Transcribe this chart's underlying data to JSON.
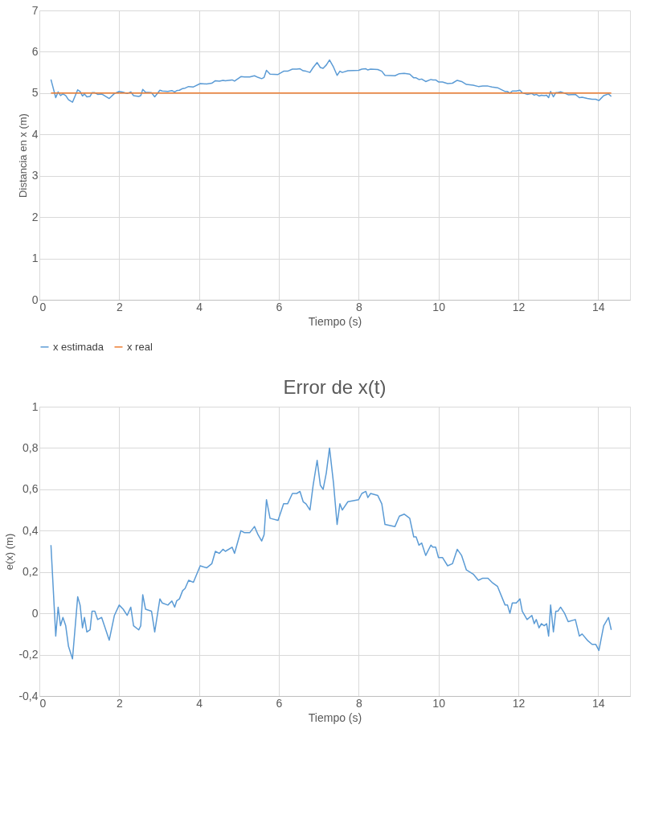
{
  "chart_data": [
    {
      "type": "line",
      "xlabel": "Tiempo (s)",
      "ylabel": "Distancia en x (m)",
      "xlim": [
        0,
        14.8
      ],
      "xticks": [
        0,
        2,
        4,
        6,
        8,
        10,
        12,
        14
      ],
      "ylim": [
        0,
        7
      ],
      "yticks": [
        0,
        1,
        2,
        3,
        4,
        5,
        6,
        7
      ],
      "grid": true,
      "legend": "bottom left",
      "marker": "none",
      "line_style": "solid",
      "series": [
        {
          "name": "x estimada",
          "color": "#5b9bd5",
          "x": [
            0.29,
            0.41,
            0.47,
            0.53,
            0.59,
            0.66,
            0.73,
            0.83,
            0.96,
            1.02,
            1.08,
            1.13,
            1.19,
            1.27,
            1.32,
            1.39,
            1.46,
            1.56,
            1.75,
            1.88,
            2.0,
            2.1,
            2.2,
            2.29,
            2.36,
            2.49,
            2.54,
            2.59,
            2.66,
            2.81,
            2.89,
            3.02,
            3.08,
            3.22,
            3.32,
            3.39,
            3.44,
            3.51,
            3.59,
            3.65,
            3.74,
            3.86,
            4.03,
            4.19,
            4.32,
            4.41,
            4.51,
            4.6,
            4.66,
            4.83,
            4.89,
            5.05,
            5.14,
            5.27,
            5.39,
            5.48,
            5.57,
            5.63,
            5.69,
            5.78,
            5.98,
            6.12,
            6.22,
            6.34,
            6.45,
            6.53,
            6.61,
            6.68,
            6.78,
            6.86,
            6.96,
            7.04,
            7.11,
            7.19,
            7.27,
            7.37,
            7.46,
            7.53,
            7.59,
            7.73,
            8.0,
            8.08,
            8.18,
            8.23,
            8.3,
            8.48,
            8.58,
            8.66,
            8.91,
            9.02,
            9.14,
            9.28,
            9.38,
            9.44,
            9.51,
            9.58,
            9.68,
            9.81,
            9.86,
            9.93,
            10.0,
            10.1,
            10.23,
            10.35,
            10.47,
            10.58,
            10.7,
            10.87,
            11.0,
            11.11,
            11.24,
            11.34,
            11.48,
            11.67,
            11.73,
            11.79,
            11.85,
            11.95,
            12.04,
            12.1,
            12.22,
            12.34,
            12.4,
            12.45,
            12.52,
            12.58,
            12.65,
            12.71,
            12.76,
            12.81,
            12.88,
            12.94,
            12.99,
            13.06,
            13.16,
            13.25,
            13.43,
            13.53,
            13.6,
            13.73,
            13.85,
            13.94,
            14.02,
            14.14,
            14.26,
            14.33
          ],
          "values": [
            5.33,
            4.89,
            5.03,
            4.94,
            4.98,
            4.94,
            4.84,
            4.78,
            5.08,
            5.04,
            4.93,
            4.98,
            4.91,
            4.92,
            5.01,
            5.01,
            4.97,
            4.98,
            4.87,
            4.99,
            5.04,
            5.02,
            4.99,
            5.03,
            4.94,
            4.92,
            4.94,
            5.09,
            5.02,
            5.01,
            4.91,
            5.07,
            5.05,
            5.04,
            5.06,
            5.03,
            5.06,
            5.07,
            5.11,
            5.12,
            5.16,
            5.15,
            5.23,
            5.22,
            5.24,
            5.3,
            5.29,
            5.31,
            5.3,
            5.32,
            5.29,
            5.4,
            5.39,
            5.39,
            5.42,
            5.38,
            5.35,
            5.38,
            5.55,
            5.46,
            5.45,
            5.53,
            5.53,
            5.58,
            5.58,
            5.59,
            5.54,
            5.53,
            5.5,
            5.62,
            5.74,
            5.62,
            5.6,
            5.68,
            5.8,
            5.63,
            5.43,
            5.53,
            5.5,
            5.54,
            5.55,
            5.58,
            5.59,
            5.56,
            5.58,
            5.57,
            5.53,
            5.43,
            5.42,
            5.47,
            5.48,
            5.46,
            5.37,
            5.37,
            5.33,
            5.34,
            5.28,
            5.33,
            5.32,
            5.32,
            5.27,
            5.27,
            5.23,
            5.24,
            5.31,
            5.28,
            5.21,
            5.19,
            5.16,
            5.17,
            5.17,
            5.15,
            5.13,
            5.04,
            5.04,
            5.0,
            5.05,
            5.05,
            5.07,
            5.01,
            4.97,
            4.99,
            4.95,
            4.97,
            4.93,
            4.95,
            4.94,
            4.95,
            4.89,
            5.04,
            4.91,
            5.01,
            5.01,
            5.03,
            5.0,
            4.96,
            4.97,
            4.89,
            4.9,
            4.87,
            4.85,
            4.85,
            4.82,
            4.94,
            4.98,
            4.92
          ]
        },
        {
          "name": "x real",
          "color": "#ed7d31",
          "x": [
            0.29,
            14.33
          ],
          "values": [
            5,
            5
          ]
        }
      ]
    },
    {
      "type": "line",
      "title": "Error de x(t)",
      "xlabel": "Tiempo (s)",
      "ylabel": "e(x) (m)",
      "xlim": [
        0,
        14.8
      ],
      "xticks": [
        0,
        2,
        4,
        6,
        8,
        10,
        12,
        14
      ],
      "ylim": [
        -0.4,
        1
      ],
      "yticks": [
        {
          "value": -0.4,
          "label": "-0,4"
        },
        {
          "value": -0.2,
          "label": "-0,2"
        },
        0,
        {
          "value": 0.2,
          "label": "0,2"
        },
        {
          "value": 0.4,
          "label": "0,4"
        },
        {
          "value": 0.6,
          "label": "0,6"
        },
        {
          "value": 0.8,
          "label": "0,8"
        },
        1
      ],
      "grid": true,
      "marker": "none",
      "line_style": "solid",
      "series": [
        {
          "color": "#5b9bd5",
          "x": [
            0.29,
            0.41,
            0.47,
            0.53,
            0.59,
            0.66,
            0.73,
            0.83,
            0.96,
            1.02,
            1.08,
            1.13,
            1.19,
            1.27,
            1.32,
            1.39,
            1.46,
            1.56,
            1.75,
            1.88,
            2.0,
            2.1,
            2.2,
            2.29,
            2.36,
            2.49,
            2.54,
            2.59,
            2.66,
            2.81,
            2.89,
            3.02,
            3.08,
            3.22,
            3.32,
            3.39,
            3.44,
            3.51,
            3.59,
            3.65,
            3.74,
            3.86,
            4.03,
            4.19,
            4.32,
            4.41,
            4.51,
            4.6,
            4.66,
            4.83,
            4.89,
            5.05,
            5.14,
            5.27,
            5.39,
            5.48,
            5.57,
            5.63,
            5.69,
            5.78,
            5.98,
            6.12,
            6.22,
            6.34,
            6.45,
            6.53,
            6.61,
            6.68,
            6.78,
            6.86,
            6.96,
            7.04,
            7.11,
            7.19,
            7.27,
            7.37,
            7.46,
            7.53,
            7.59,
            7.73,
            8.0,
            8.08,
            8.18,
            8.23,
            8.3,
            8.48,
            8.58,
            8.66,
            8.91,
            9.02,
            9.14,
            9.28,
            9.38,
            9.44,
            9.51,
            9.58,
            9.68,
            9.81,
            9.86,
            9.93,
            10.0,
            10.1,
            10.23,
            10.35,
            10.47,
            10.58,
            10.7,
            10.87,
            11.0,
            11.11,
            11.24,
            11.34,
            11.48,
            11.67,
            11.73,
            11.79,
            11.85,
            11.95,
            12.04,
            12.1,
            12.22,
            12.34,
            12.4,
            12.45,
            12.52,
            12.58,
            12.65,
            12.71,
            12.76,
            12.81,
            12.88,
            12.94,
            12.99,
            13.06,
            13.16,
            13.25,
            13.43,
            13.53,
            13.6,
            13.73,
            13.85,
            13.94,
            14.02,
            14.14,
            14.26,
            14.33
          ],
          "values": [
            0.33,
            -0.11,
            0.03,
            -0.06,
            -0.02,
            -0.06,
            -0.16,
            -0.22,
            0.08,
            0.04,
            -0.07,
            -0.02,
            -0.09,
            -0.08,
            0.01,
            0.01,
            -0.03,
            -0.02,
            -0.13,
            -0.01,
            0.04,
            0.02,
            -0.01,
            0.03,
            -0.06,
            -0.08,
            -0.06,
            0.09,
            0.02,
            0.01,
            -0.09,
            0.07,
            0.05,
            0.04,
            0.06,
            0.03,
            0.06,
            0.07,
            0.11,
            0.12,
            0.16,
            0.15,
            0.23,
            0.22,
            0.24,
            0.3,
            0.29,
            0.31,
            0.3,
            0.32,
            0.29,
            0.4,
            0.39,
            0.39,
            0.42,
            0.38,
            0.35,
            0.38,
            0.55,
            0.46,
            0.45,
            0.53,
            0.53,
            0.58,
            0.58,
            0.59,
            0.54,
            0.53,
            0.5,
            0.62,
            0.74,
            0.62,
            0.6,
            0.68,
            0.8,
            0.63,
            0.43,
            0.53,
            0.5,
            0.54,
            0.55,
            0.58,
            0.59,
            0.56,
            0.58,
            0.57,
            0.53,
            0.43,
            0.42,
            0.47,
            0.48,
            0.46,
            0.37,
            0.37,
            0.33,
            0.34,
            0.28,
            0.33,
            0.32,
            0.32,
            0.27,
            0.27,
            0.23,
            0.24,
            0.31,
            0.28,
            0.21,
            0.19,
            0.16,
            0.17,
            0.17,
            0.15,
            0.13,
            0.04,
            0.04,
            0.0,
            0.05,
            0.05,
            0.07,
            0.01,
            -0.03,
            -0.01,
            -0.05,
            -0.03,
            -0.07,
            -0.05,
            -0.06,
            -0.05,
            -0.11,
            0.04,
            -0.09,
            0.01,
            0.01,
            0.03,
            0.0,
            -0.04,
            -0.03,
            -0.11,
            -0.1,
            -0.13,
            -0.15,
            -0.15,
            -0.18,
            -0.06,
            -0.02,
            -0.08
          ]
        }
      ]
    }
  ]
}
